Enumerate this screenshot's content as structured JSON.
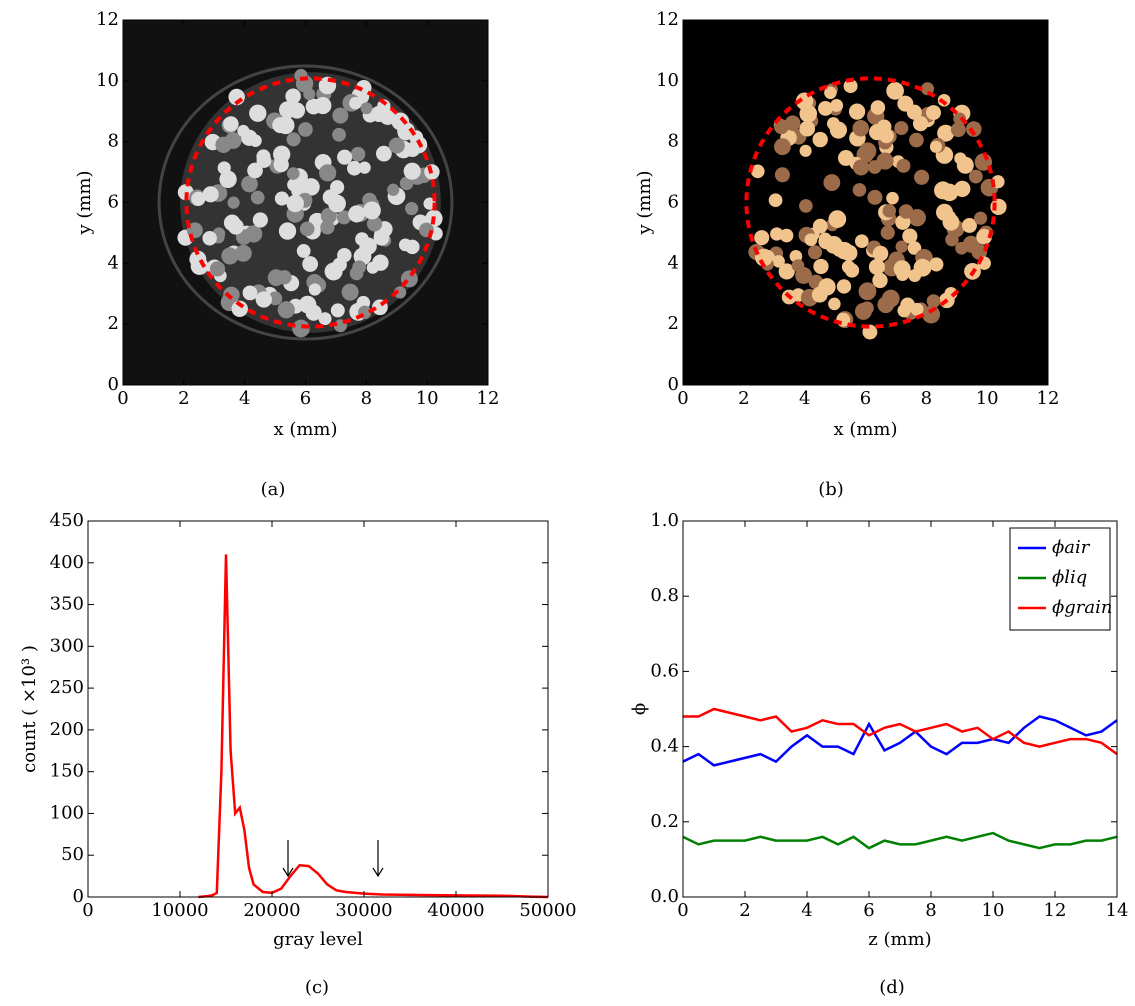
{
  "chart_data": [
    {
      "type": "image",
      "caption": "(a)",
      "xlabel": "x (mm)",
      "ylabel": "y (mm)",
      "xlim": [
        0,
        12
      ],
      "ylim": [
        0,
        12
      ],
      "xticks": [
        0,
        2,
        4,
        6,
        8,
        10,
        12
      ],
      "yticks": [
        0,
        2,
        4,
        6,
        8,
        10,
        12
      ],
      "colormap": "gray"
    },
    {
      "type": "image",
      "caption": "(b)",
      "xlabel": "x (mm)",
      "ylabel": "y (mm)",
      "xlim": [
        0,
        12
      ],
      "ylim": [
        0,
        12
      ],
      "xticks": [
        0,
        2,
        4,
        6,
        8,
        10,
        12
      ],
      "yticks": [
        0,
        2,
        4,
        6,
        8,
        10,
        12
      ],
      "colormap": "tan"
    },
    {
      "type": "line",
      "caption": "(c)",
      "xlabel": "gray level",
      "ylabel": "count ( ×10³ )",
      "color": "#ff0000",
      "x": [
        12000,
        13000,
        13500,
        14000,
        14500,
        15000,
        15500,
        16000,
        16500,
        17000,
        17500,
        18000,
        19000,
        20000,
        21000,
        22000,
        23000,
        24000,
        25000,
        26000,
        27000,
        28000,
        30000,
        32000,
        35000,
        40000,
        45000,
        48000,
        50000
      ],
      "values": [
        0,
        1,
        2,
        5,
        150,
        410,
        175,
        100,
        107,
        80,
        35,
        15,
        6,
        5,
        10,
        25,
        38,
        37,
        28,
        15,
        8,
        6,
        4,
        3,
        2.5,
        2,
        1.5,
        0.5,
        0
      ],
      "xlim": [
        0,
        50000
      ],
      "ylim": [
        0,
        450
      ],
      "xticks": [
        0,
        10000,
        20000,
        30000,
        40000,
        50000
      ],
      "yticks": [
        0,
        50,
        100,
        150,
        200,
        250,
        300,
        350,
        400,
        450
      ]
    },
    {
      "type": "line",
      "caption": "(d)",
      "xlabel": "z (mm)",
      "ylabel": "ϕ",
      "legend": "upper right",
      "x": [
        0,
        0.5,
        1,
        1.5,
        2,
        2.5,
        3,
        3.5,
        4,
        4.5,
        5,
        5.5,
        6,
        6.5,
        7,
        7.5,
        8,
        8.5,
        9,
        9.5,
        10,
        10.5,
        11,
        11.5,
        12,
        12.5,
        13,
        13.5,
        14
      ],
      "series": [
        {
          "name": "ϕair",
          "color": "#0000ff",
          "values": [
            0.36,
            0.38,
            0.35,
            0.36,
            0.37,
            0.38,
            0.36,
            0.4,
            0.43,
            0.4,
            0.4,
            0.38,
            0.46,
            0.39,
            0.41,
            0.44,
            0.4,
            0.38,
            0.41,
            0.41,
            0.42,
            0.41,
            0.45,
            0.48,
            0.47,
            0.45,
            0.43,
            0.44,
            0.47
          ]
        },
        {
          "name": "ϕliq",
          "color": "#008000",
          "values": [
            0.16,
            0.14,
            0.15,
            0.15,
            0.15,
            0.16,
            0.15,
            0.15,
            0.15,
            0.16,
            0.14,
            0.16,
            0.13,
            0.15,
            0.14,
            0.14,
            0.15,
            0.16,
            0.15,
            0.16,
            0.17,
            0.15,
            0.14,
            0.13,
            0.14,
            0.14,
            0.15,
            0.15,
            0.16
          ]
        },
        {
          "name": "ϕgrain",
          "color": "#ff0000",
          "values": [
            0.48,
            0.48,
            0.5,
            0.49,
            0.48,
            0.47,
            0.48,
            0.44,
            0.45,
            0.47,
            0.46,
            0.46,
            0.43,
            0.45,
            0.46,
            0.44,
            0.45,
            0.46,
            0.44,
            0.45,
            0.42,
            0.44,
            0.41,
            0.4,
            0.41,
            0.42,
            0.42,
            0.41,
            0.38
          ]
        }
      ],
      "xlim": [
        0,
        14
      ],
      "ylim": [
        0,
        1
      ],
      "xticks": [
        0,
        2,
        4,
        6,
        8,
        10,
        12,
        14
      ],
      "yticks": [
        {
          "value": 0,
          "label": "0.0"
        },
        {
          "value": 0.2,
          "label": "0.2"
        },
        {
          "value": 0.4,
          "label": "0.4"
        },
        {
          "value": 0.6,
          "label": "0.6"
        },
        {
          "value": 0.8,
          "label": "0.8"
        },
        {
          "value": 1,
          "label": "1.0"
        }
      ]
    }
  ]
}
